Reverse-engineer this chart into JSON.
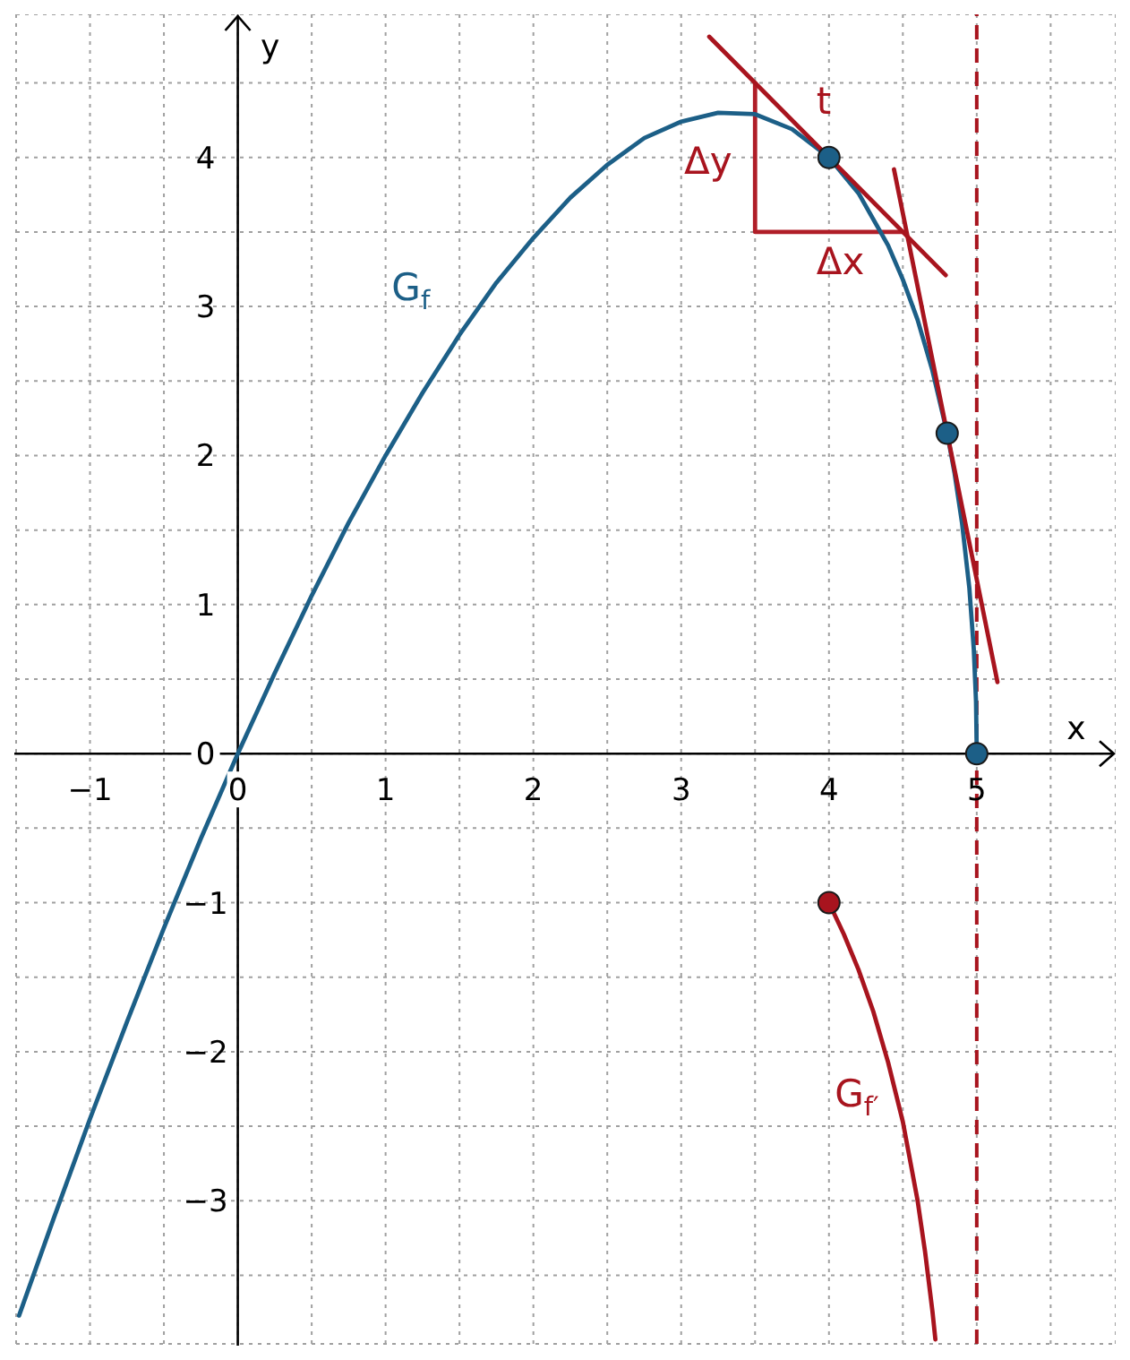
{
  "chart_data": {
    "type": "line",
    "xlabel": "x",
    "ylabel": "y",
    "xlim": [
      -1.5,
      5.94
    ],
    "ylim": [
      -3.96,
      4.96
    ],
    "xticks": [
      {
        "value": -1.5,
        "label": null
      },
      {
        "value": -1,
        "label": "−1"
      },
      {
        "value": -0.5,
        "label": null
      },
      0,
      {
        "value": 0.5,
        "label": null
      },
      1,
      {
        "value": 1.5,
        "label": null
      },
      2,
      {
        "value": 2.5,
        "label": null
      },
      3,
      {
        "value": 3.5,
        "label": null
      },
      4,
      {
        "value": 4.5,
        "label": null
      },
      5,
      {
        "value": 5.5,
        "label": null
      }
    ],
    "yticks": [
      {
        "value": -3.5,
        "label": null
      },
      {
        "value": -3,
        "label": "−3"
      },
      {
        "value": -2.5,
        "label": null
      },
      {
        "value": -2,
        "label": "−2"
      },
      {
        "value": -1.5,
        "label": null
      },
      {
        "value": -1,
        "label": "−1"
      },
      {
        "value": -0.5,
        "label": null
      },
      0,
      {
        "value": 0.5,
        "label": null
      },
      1,
      {
        "value": 1.5,
        "label": null
      },
      2,
      {
        "value": 2.5,
        "label": null
      },
      3,
      {
        "value": 3.5,
        "label": null
      },
      4,
      {
        "value": 4.5,
        "label": null
      }
    ],
    "grid": true,
    "series": [
      {
        "type": "line",
        "color": "#b01e28",
        "x": [
          3.5,
          3.5,
          4.5
        ],
        "values": [
          4.5,
          3.5,
          3.5
        ]
      },
      {
        "type": "line",
        "color": "#1c5f87",
        "x": [
          -1.48,
          -1.25,
          -1,
          -0.75,
          -0.5,
          -0.25,
          0,
          0.25,
          0.5,
          0.75,
          1,
          1.25,
          1.5,
          1.75,
          2,
          2.25,
          2.5,
          2.75,
          3,
          3.25,
          3.5,
          3.75,
          4,
          4.2,
          4.4,
          4.5,
          4.6,
          4.7,
          4.8,
          4.85,
          4.9,
          4.95,
          4.98,
          4.995,
          5
        ],
        "values": [
          -3.77,
          -3.13,
          -2.45,
          -1.8,
          -1.17,
          -0.57,
          0,
          0.54,
          1.06,
          1.55,
          2,
          2.42,
          2.81,
          3.16,
          3.46,
          3.73,
          3.95,
          4.13,
          4.24,
          4.3,
          4.29,
          4.19,
          4,
          3.76,
          3.41,
          3.18,
          2.91,
          2.57,
          2.15,
          1.88,
          1.55,
          1.11,
          0.7,
          0.35,
          0
        ]
      },
      {
        "type": "line",
        "color": "#a8141e",
        "x": [
          4,
          4.1,
          4.2,
          4.3,
          4.4,
          4.5,
          4.6,
          4.65,
          4.7,
          4.72
        ],
        "values": [
          -1,
          -1.21,
          -1.45,
          -1.73,
          -2.07,
          -2.47,
          -3,
          -3.34,
          -3.74,
          -3.93
        ]
      },
      {
        "type": "line",
        "color": "#a8141e",
        "x": [
          3.19,
          4.79
        ],
        "values": [
          4.81,
          3.21
        ]
      },
      {
        "type": "line",
        "color": "#a8141e",
        "x": [
          4.44,
          5.14
        ],
        "values": [
          3.92,
          0.48
        ]
      },
      {
        "type": "scatter",
        "color": "#1c5f87",
        "x": [
          4,
          4.8,
          5
        ],
        "values": [
          4,
          2.15,
          0
        ]
      },
      {
        "type": "scatter",
        "color": "#a8141e",
        "x": [
          4
        ],
        "values": [
          -1
        ]
      }
    ],
    "ref_lines": [
      {
        "axis": "x",
        "value": 5,
        "color": "#a8141e",
        "line_style": "dashed"
      }
    ],
    "annotations": [
      "G$_{f}$",
      "G$_{f′}$",
      "t",
      "Δy",
      "Δx"
    ]
  }
}
